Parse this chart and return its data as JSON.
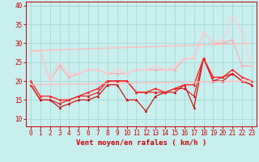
{
  "background_color": "#c8eeee",
  "grid_color": "#a8d8d8",
  "xlabel": "Vent moyen/en rafales ( km/h )",
  "x_ticks": [
    0,
    1,
    2,
    3,
    4,
    5,
    6,
    7,
    8,
    9,
    10,
    11,
    12,
    13,
    14,
    15,
    16,
    17,
    18,
    19,
    20,
    21,
    22,
    23
  ],
  "ylim": [
    8,
    41
  ],
  "yticks": [
    10,
    15,
    20,
    25,
    30,
    35,
    40
  ],
  "lines": [
    {
      "x": [
        0,
        1,
        2,
        3,
        4,
        5,
        6,
        7,
        8,
        9,
        10,
        11,
        12,
        13,
        14,
        15,
        16,
        17,
        18,
        19,
        20,
        21,
        22,
        23
      ],
      "y": [
        19,
        15,
        15,
        13,
        14,
        15,
        15,
        16,
        19,
        19,
        15,
        15,
        12,
        16,
        17,
        17,
        19,
        13,
        26,
        20,
        20,
        22,
        20,
        19
      ],
      "color": "#cc0000",
      "lw": 0.8,
      "marker": "^",
      "ms": 2.0
    },
    {
      "x": [
        0,
        1,
        2,
        3,
        4,
        5,
        6,
        7,
        8,
        9,
        10,
        11,
        12,
        13,
        14,
        15,
        16,
        17,
        18,
        19,
        20,
        21,
        22,
        23
      ],
      "y": [
        19,
        15,
        15,
        14,
        15,
        16,
        16,
        17,
        20,
        20,
        20,
        17,
        17,
        17,
        17,
        18,
        18,
        16,
        26,
        20,
        21,
        22,
        20,
        19
      ],
      "color": "#dd1111",
      "lw": 0.8,
      "marker": "^",
      "ms": 2.0
    },
    {
      "x": [
        0,
        1,
        2,
        3,
        4,
        5,
        6,
        7,
        8,
        9,
        10,
        11,
        12,
        13,
        14,
        15,
        16,
        17,
        18,
        19,
        20,
        21,
        22,
        23
      ],
      "y": [
        20,
        16,
        16,
        15,
        15,
        16,
        17,
        18,
        20,
        20,
        20,
        17,
        17,
        18,
        17,
        18,
        19,
        19,
        26,
        21,
        21,
        23,
        21,
        20
      ],
      "color": "#ff2222",
      "lw": 1.0,
      "marker": "^",
      "ms": 2.0
    },
    {
      "x": [
        0,
        1,
        2,
        3,
        4,
        5,
        6,
        7,
        8,
        9,
        10,
        11,
        12,
        13,
        14,
        15,
        16,
        17,
        18,
        19,
        20,
        21,
        22,
        23
      ],
      "y": [
        28,
        28,
        20,
        24,
        21,
        22,
        23,
        23,
        22,
        22,
        22,
        23,
        23,
        23,
        23,
        23,
        26,
        26,
        33,
        30,
        30,
        31,
        24,
        24
      ],
      "color": "#ffaaaa",
      "lw": 0.9,
      "marker": "^",
      "ms": 2.0
    },
    {
      "x": [
        0,
        1,
        2,
        3,
        4,
        5,
        6,
        7,
        8,
        9,
        10,
        11,
        12,
        13,
        14,
        15,
        16,
        17,
        18,
        19,
        20,
        21,
        22,
        23
      ],
      "y": [
        28,
        28,
        20,
        25,
        22,
        22,
        23,
        23,
        22,
        23,
        22,
        23,
        23,
        24,
        23,
        24,
        26,
        26,
        33,
        30,
        31,
        37,
        33,
        24
      ],
      "color": "#ffcccc",
      "lw": 0.9,
      "marker": "^",
      "ms": 2.0
    },
    {
      "x": [
        0,
        23
      ],
      "y": [
        19,
        20
      ],
      "color": "#ffbbbb",
      "lw": 1.0,
      "marker": "none",
      "ms": 0
    },
    {
      "x": [
        0,
        23
      ],
      "y": [
        28,
        30
      ],
      "color": "#ffbbbb",
      "lw": 1.0,
      "marker": "none",
      "ms": 0
    }
  ],
  "tick_marks_color": "#cc0000",
  "tick_fontsize": 5.5,
  "xlabel_fontsize": 6.5,
  "xlabel_color": "#cc0000"
}
